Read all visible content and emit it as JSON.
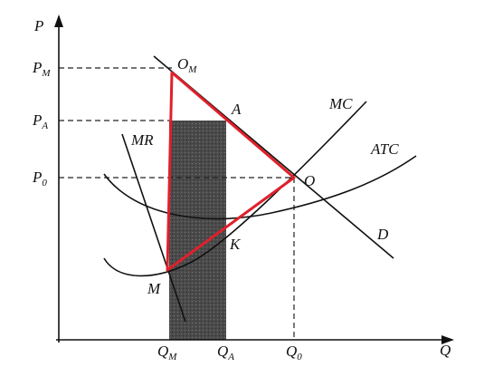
{
  "axes": {
    "y": "P",
    "x": "Q"
  },
  "price_labels": [
    {
      "main": "P",
      "sub": "M"
    },
    {
      "main": "P",
      "sub": "A"
    },
    {
      "main": "P",
      "sub": "0"
    }
  ],
  "quantity_labels": [
    {
      "main": "Q",
      "sub": "M"
    },
    {
      "main": "Q",
      "sub": "A"
    },
    {
      "main": "Q",
      "sub": "0"
    }
  ],
  "points": [
    {
      "main": "O",
      "sub": "M"
    },
    {
      "main": "A"
    },
    {
      "main": "O"
    },
    {
      "main": "K"
    },
    {
      "main": "M"
    }
  ],
  "curves": {
    "mr": "MR",
    "mc": "MC",
    "atc": "ATC",
    "d": "D"
  }
}
